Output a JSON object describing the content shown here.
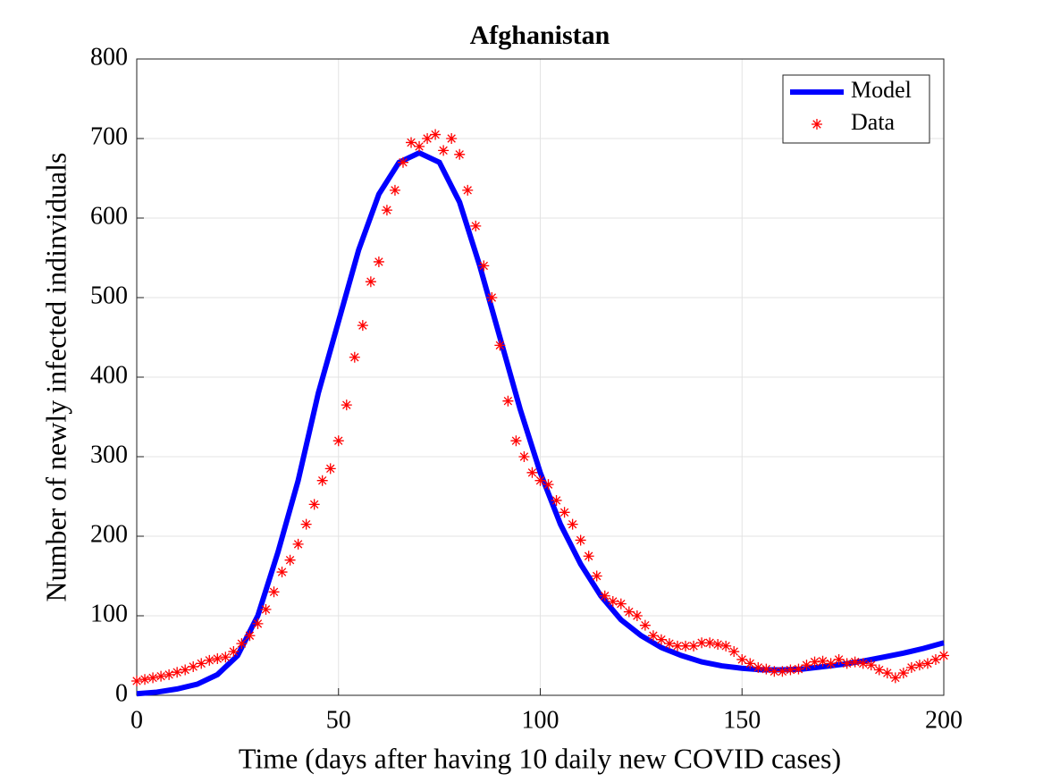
{
  "chart_data": {
    "type": "line",
    "title": "Afghanistan",
    "x_label": "Time (days after having 10 daily new COVID cases)",
    "y_label": "Number of newly infected indinviduals",
    "xlim": [
      0,
      200
    ],
    "xticks": [
      0,
      50,
      100,
      150,
      200
    ],
    "ylim": [
      0,
      800
    ],
    "yticks": [
      0,
      100,
      200,
      300,
      400,
      500,
      600,
      700,
      800
    ],
    "grid": true,
    "legend": "top-right",
    "series": [
      {
        "name": "Model",
        "style": "line",
        "color": "#0000ff",
        "x": [
          0,
          5,
          10,
          15,
          20,
          25,
          30,
          35,
          40,
          45,
          50,
          55,
          60,
          65,
          70,
          75,
          80,
          85,
          90,
          95,
          100,
          105,
          110,
          115,
          120,
          125,
          130,
          135,
          140,
          145,
          150,
          155,
          160,
          165,
          170,
          175,
          180,
          185,
          190,
          195,
          200
        ],
        "values": [
          2,
          4,
          8,
          14,
          26,
          50,
          100,
          180,
          270,
          380,
          470,
          560,
          630,
          670,
          682,
          670,
          620,
          540,
          450,
          360,
          280,
          215,
          165,
          125,
          95,
          75,
          60,
          50,
          42,
          37,
          34,
          32,
          32,
          33,
          36,
          39,
          43,
          48,
          53,
          59,
          66
        ]
      },
      {
        "name": "Data",
        "style": "markers",
        "color": "#ff0000",
        "x": [
          0,
          2,
          4,
          6,
          8,
          10,
          12,
          14,
          16,
          18,
          20,
          22,
          24,
          26,
          28,
          30,
          32,
          34,
          36,
          38,
          40,
          42,
          44,
          46,
          48,
          50,
          52,
          54,
          56,
          58,
          60,
          62,
          64,
          66,
          68,
          70,
          72,
          74,
          76,
          78,
          80,
          82,
          84,
          86,
          88,
          90,
          92,
          94,
          96,
          98,
          100,
          102,
          104,
          106,
          108,
          110,
          112,
          114,
          116,
          118,
          120,
          122,
          124,
          126,
          128,
          130,
          132,
          134,
          136,
          138,
          140,
          142,
          144,
          146,
          148,
          150,
          152,
          154,
          156,
          158,
          160,
          162,
          164,
          166,
          168,
          170,
          172,
          174,
          176,
          178,
          180,
          182,
          184,
          186,
          188,
          190,
          192,
          194,
          196,
          198,
          200
        ],
        "values": [
          18,
          20,
          22,
          24,
          26,
          29,
          32,
          36,
          40,
          44,
          46,
          48,
          55,
          65,
          75,
          90,
          108,
          130,
          155,
          170,
          190,
          215,
          240,
          270,
          285,
          320,
          365,
          425,
          465,
          520,
          545,
          610,
          635,
          670,
          695,
          690,
          700,
          705,
          685,
          700,
          680,
          635,
          590,
          540,
          500,
          440,
          370,
          320,
          300,
          280,
          270,
          265,
          245,
          230,
          215,
          195,
          175,
          150,
          125,
          118,
          115,
          105,
          100,
          88,
          75,
          70,
          65,
          62,
          62,
          62,
          66,
          66,
          64,
          62,
          55,
          45,
          40,
          35,
          33,
          30,
          30,
          32,
          33,
          38,
          42,
          43,
          40,
          45,
          40,
          42,
          40,
          38,
          32,
          28,
          22,
          28,
          35,
          38,
          40,
          45,
          50
        ]
      }
    ]
  }
}
